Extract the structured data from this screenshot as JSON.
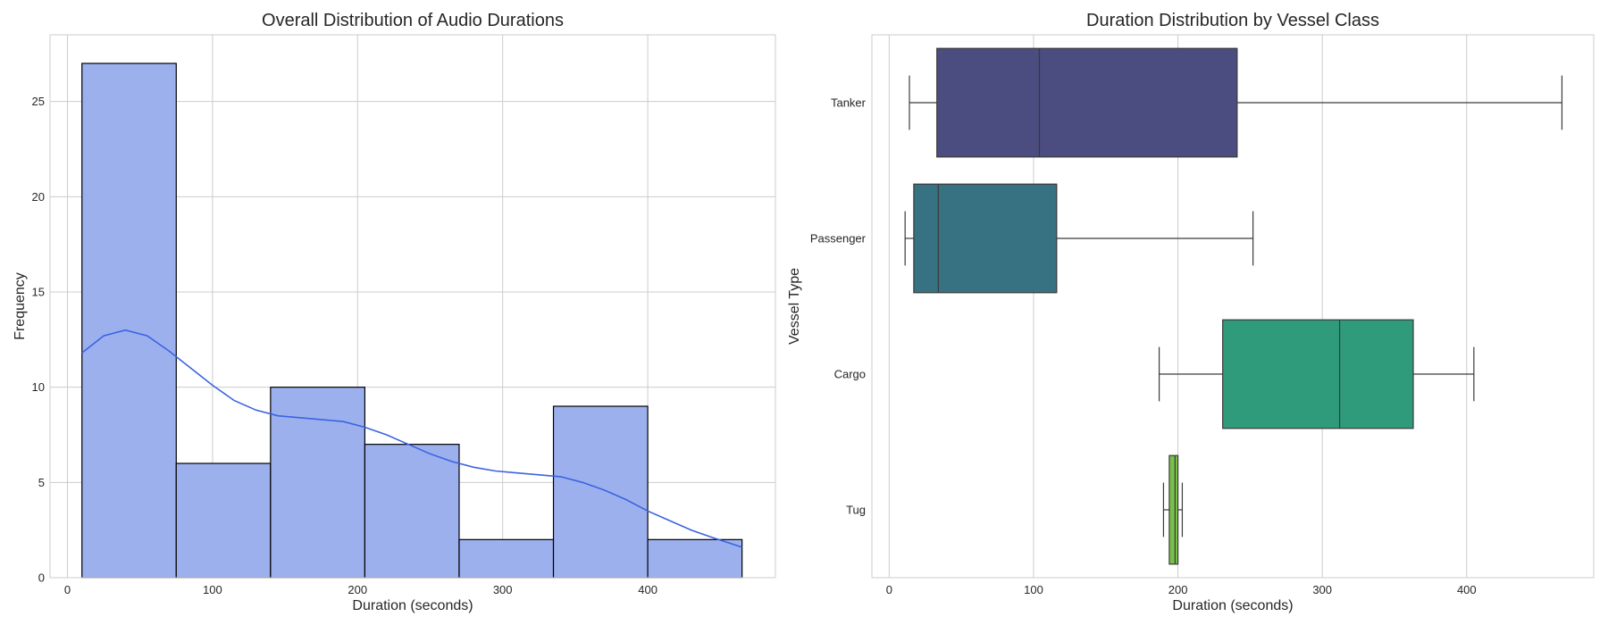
{
  "chart_data": [
    {
      "type": "bar",
      "title": "Overall Distribution of Audio Durations",
      "xlabel": "Duration (seconds)",
      "ylabel": "Frequency",
      "xlim": [
        -12,
        488
      ],
      "ylim": [
        0,
        28.5
      ],
      "xticks": [
        0,
        100,
        200,
        300,
        400
      ],
      "yticks": [
        0,
        5,
        10,
        15,
        20,
        25
      ],
      "grid": true,
      "bins": [
        {
          "x0": 10,
          "x1": 75,
          "count": 27
        },
        {
          "x0": 75,
          "x1": 140,
          "count": 6
        },
        {
          "x0": 140,
          "x1": 205,
          "count": 10
        },
        {
          "x0": 205,
          "x1": 270,
          "count": 7
        },
        {
          "x0": 270,
          "x1": 335,
          "count": 2
        },
        {
          "x0": 335,
          "x1": 400,
          "count": 9
        },
        {
          "x0": 400,
          "x1": 465,
          "count": 2
        }
      ],
      "kde": {
        "x": [
          10,
          25,
          40,
          55,
          70,
          85,
          100,
          115,
          130,
          145,
          160,
          175,
          190,
          205,
          220,
          235,
          250,
          265,
          280,
          295,
          310,
          325,
          340,
          355,
          370,
          385,
          400,
          415,
          430,
          445,
          465
        ],
        "y": [
          11.8,
          12.7,
          13.0,
          12.7,
          11.9,
          11.0,
          10.1,
          9.3,
          8.8,
          8.5,
          8.4,
          8.3,
          8.2,
          7.9,
          7.5,
          7.0,
          6.5,
          6.1,
          5.8,
          5.6,
          5.5,
          5.4,
          5.3,
          5.0,
          4.6,
          4.1,
          3.5,
          3.0,
          2.5,
          2.1,
          1.6
        ]
      },
      "bar_color": "#9db0ee",
      "kde_color": "#3b63e0"
    },
    {
      "type": "box",
      "title": "Duration Distribution by Vessel Class",
      "xlabel": "Duration (seconds)",
      "ylabel": "Vessel Type",
      "xlim": [
        -12,
        488
      ],
      "xticks": [
        0,
        100,
        200,
        300,
        400
      ],
      "grid": true,
      "categories": [
        "Tanker",
        "Passenger",
        "Cargo",
        "Tug"
      ],
      "boxes": [
        {
          "category": "Tanker",
          "whislo": 14,
          "q1": 33,
          "med": 104,
          "q3": 241,
          "whishi": 466,
          "color": "#4b4c7f"
        },
        {
          "category": "Passenger",
          "whislo": 11,
          "q1": 17,
          "med": 34,
          "q3": 116,
          "whishi": 252,
          "color": "#367282"
        },
        {
          "category": "Cargo",
          "whislo": 187,
          "q1": 231,
          "med": 312,
          "q3": 363,
          "whishi": 405,
          "color": "#2f9b7b"
        },
        {
          "category": "Tug",
          "whislo": 190,
          "q1": 194,
          "med": 198,
          "q3": 200,
          "whishi": 203,
          "color": "#79c04a"
        }
      ]
    }
  ]
}
